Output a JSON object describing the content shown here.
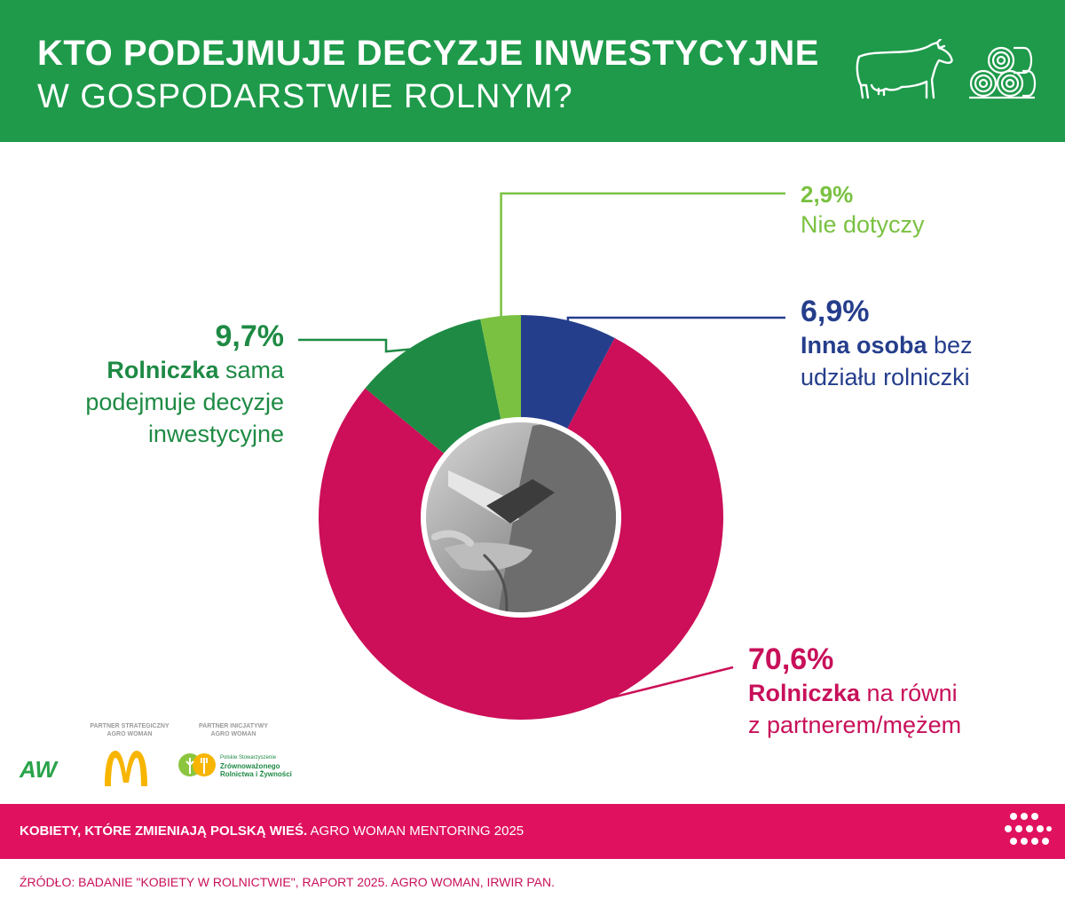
{
  "header": {
    "title_line1": "KTO PODEJMUJE DECYZJE INWESTYCYJNE",
    "title_line2": "W GOSPODARSTWIE ROLNYM?",
    "icons": [
      "cow-icon",
      "hay-bales-icon"
    ]
  },
  "chart_data": {
    "type": "pie",
    "donut": true,
    "start": "top, clockwise",
    "series": [
      {
        "name": "",
        "values": [
          6.9,
          70.6,
          9.7,
          2.9
        ]
      }
    ],
    "slices": [
      {
        "value": 6.9,
        "value_label": "6,9%",
        "bold": "Inna osoba",
        "rest": " bez",
        "line2": "udziału rolniczki",
        "color": "#253e8c"
      },
      {
        "value": 70.6,
        "value_label": "70,6%",
        "bold": "Rolniczka",
        "rest": " na równi",
        "line2": "z partnerem/mężem",
        "color": "#cc0f58"
      },
      {
        "value": 9.7,
        "value_label": "9,7%",
        "bold": "Rolniczka",
        "rest": " sama",
        "line2": "podejmuje decyzje",
        "line3": "inwestycyjne",
        "color": "#1e8a44"
      },
      {
        "value": 2.9,
        "value_label": "2,9%",
        "bold": "",
        "rest": "Nie dotyczy",
        "color": "#7ac142"
      }
    ],
    "center_image": "grayscale photo of hands holding wheat and a tablet"
  },
  "logos": {
    "partner_strategic": "PARTNER STRATEGICZNY\nAGRO WOMAN",
    "partner_initiative": "PARTNER INICJATYWY\nAGRO WOMAN",
    "aw": "AW",
    "pszr_line1": "Polskie Stowarzyszenie",
    "pszr_line2": "Zrównoważonego",
    "pszr_line3": "Rolnictwa i Żywności"
  },
  "footer": {
    "band_bold": "KOBIETY, KTÓRE ZMIENIAJĄ POLSKĄ WIEŚ.",
    "band_rest": " AGRO WOMAN MENTORING 2025",
    "source": "ŹRÓDŁO: BADANIE \"KOBIETY W ROLNICTWIE\", RAPORT 2025. AGRO WOMAN, IRWIR PAN."
  },
  "colors": {
    "header_bg": "#1e9a4a",
    "band_bg": "#e0125f",
    "pink": "#cc0f58",
    "blue": "#253e8c",
    "green": "#1e8a44",
    "light_green": "#7ac142"
  }
}
